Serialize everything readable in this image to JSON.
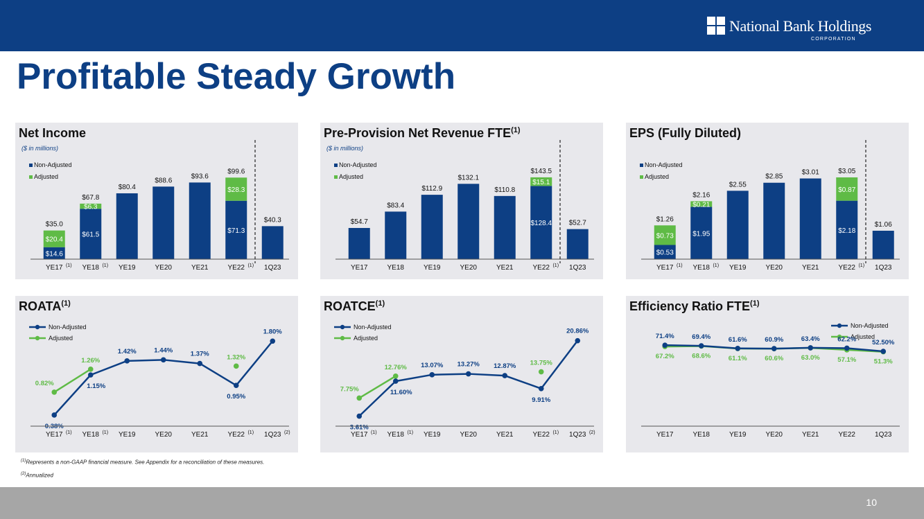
{
  "brand": {
    "name": "National Bank Holdings",
    "sub": "CORPORATION"
  },
  "page": {
    "title": "Profitable Steady Growth",
    "number": "10"
  },
  "colors": {
    "navy": "#0d3f84",
    "green": "#5fbb46",
    "panel_bg": "#e8e8ec",
    "grey_bar": "#a6a6a6"
  },
  "footnotes": {
    "note1_marker": "(1)",
    "note1_text": "Represents a non-GAAP financial measure.  See Appendix for a reconciliation of these measures.",
    "note2_marker": "(2)",
    "note2_text": "Annualized"
  },
  "chart_data": [
    {
      "id": "net-income",
      "type": "bar",
      "title": "Net Income",
      "title_sup": "",
      "subtitle": "($ in millions)",
      "legend": [
        "Non-Adjusted",
        "Adjusted"
      ],
      "categories": [
        "YE17",
        "YE18",
        "YE19",
        "YE20",
        "YE21",
        "YE22",
        "1Q23"
      ],
      "category_notes": [
        "(1)",
        "(1)",
        "",
        "",
        "",
        "(1)",
        ""
      ],
      "series": [
        {
          "name": "Non-Adjusted",
          "values": [
            14.6,
            61.5,
            80.4,
            88.6,
            93.6,
            71.3,
            40.3
          ]
        },
        {
          "name": "Adjusted",
          "values": [
            20.4,
            6.3,
            null,
            null,
            null,
            28.3,
            null
          ]
        }
      ],
      "inner_labels": [
        [
          "$14.6",
          "$20.4"
        ],
        [
          "$61.5",
          "$6.3"
        ],
        [
          "",
          ""
        ],
        [
          "",
          ""
        ],
        [
          "",
          ""
        ],
        [
          "$71.3",
          "$28.3"
        ],
        [
          "",
          ""
        ]
      ],
      "total_labels": [
        "$35.0",
        "$67.8",
        "$80.4",
        "$88.6",
        "$93.6",
        "$99.6",
        "$40.3"
      ],
      "ylim": [
        0,
        110
      ],
      "divider_after_index": 5
    },
    {
      "id": "ppnr",
      "type": "bar",
      "title": "Pre-Provision Net Revenue FTE",
      "title_sup": "(1)",
      "subtitle": "($ in millions)",
      "legend": [
        "Non-Adjusted",
        "Adjusted"
      ],
      "categories": [
        "YE17",
        "YE18",
        "YE19",
        "YE20",
        "YE21",
        "YE22",
        "1Q23"
      ],
      "category_notes": [
        "",
        "",
        "",
        "",
        "",
        "(1)",
        ""
      ],
      "series": [
        {
          "name": "Non-Adjusted",
          "values": [
            54.7,
            83.4,
            112.9,
            132.1,
            110.8,
            128.4,
            52.7
          ]
        },
        {
          "name": "Adjusted",
          "values": [
            null,
            null,
            null,
            null,
            null,
            15.1,
            null
          ]
        }
      ],
      "inner_labels": [
        [
          "",
          ""
        ],
        [
          "",
          ""
        ],
        [
          "",
          ""
        ],
        [
          "",
          ""
        ],
        [
          "",
          ""
        ],
        [
          "$128.4",
          "$15.1"
        ],
        [
          "",
          ""
        ]
      ],
      "total_labels": [
        "$54.7",
        "$83.4",
        "$112.9",
        "$132.1",
        "$110.8",
        "$143.5",
        "$52.7"
      ],
      "ylim": [
        0,
        158
      ],
      "divider_after_index": 5
    },
    {
      "id": "eps",
      "type": "bar",
      "title": "EPS (Fully Diluted)",
      "title_sup": "",
      "subtitle": "",
      "legend": [
        "Non-Adjusted",
        "Adjusted"
      ],
      "categories": [
        "YE17",
        "YE18",
        "YE19",
        "YE20",
        "YE21",
        "YE22",
        "1Q23"
      ],
      "category_notes": [
        "(1)",
        "(1)",
        "",
        "",
        "",
        "(1)",
        ""
      ],
      "series": [
        {
          "name": "Non-Adjusted",
          "values": [
            0.53,
            1.95,
            2.55,
            2.85,
            3.01,
            2.18,
            1.06
          ]
        },
        {
          "name": "Adjusted",
          "values": [
            0.73,
            0.21,
            null,
            null,
            null,
            0.87,
            null
          ]
        }
      ],
      "inner_labels": [
        [
          "$0.53",
          "$0.73"
        ],
        [
          "$1.95",
          "$0.21"
        ],
        [
          "",
          ""
        ],
        [
          "",
          ""
        ],
        [
          "",
          ""
        ],
        [
          "$2.18",
          "$0.87"
        ],
        [
          "",
          ""
        ]
      ],
      "total_labels": [
        "$1.26",
        "$2.16",
        "$2.55",
        "$2.85",
        "$3.01",
        "$3.05",
        "$1.06"
      ],
      "ylim": [
        0,
        3.36
      ],
      "divider_after_index": 5
    },
    {
      "id": "roata",
      "type": "line",
      "title": "ROATA",
      "title_sup": "(1)",
      "legend": [
        "Non-Adjusted",
        "Adjusted"
      ],
      "categories": [
        "YE17",
        "YE18",
        "YE19",
        "YE20",
        "YE21",
        "YE22",
        "1Q23"
      ],
      "category_notes": [
        "(1)",
        "(1)",
        "",
        "",
        "",
        "(1)",
        "(2)"
      ],
      "series": [
        {
          "name": "Non-Adjusted",
          "values": [
            0.38,
            1.15,
            1.42,
            1.44,
            1.37,
            0.95,
            1.8
          ]
        },
        {
          "name": "Adjusted",
          "values": [
            0.82,
            1.26,
            null,
            null,
            null,
            1.32,
            null
          ]
        }
      ],
      "labels_nonadj": [
        "0.38%",
        "1.15%",
        "1.42%",
        "1.44%",
        "1.37%",
        "0.95%",
        "1.80%"
      ],
      "labels_adj": [
        "0.82%",
        "1.26%",
        "",
        "",
        "",
        "1.32%",
        ""
      ],
      "ylim": [
        0.3,
        1.87
      ]
    },
    {
      "id": "roatce",
      "type": "line",
      "title": "ROATCE",
      "title_sup": "(1)",
      "legend": [
        "Non-Adjusted",
        "Adjusted"
      ],
      "categories": [
        "YE17",
        "YE18",
        "YE19",
        "YE20",
        "YE21",
        "YE22",
        "1Q23"
      ],
      "category_notes": [
        "(1)",
        "(1)",
        "",
        "",
        "",
        "(1)",
        "(2)"
      ],
      "series": [
        {
          "name": "Non-Adjusted",
          "values": [
            3.61,
            11.6,
            13.07,
            13.27,
            12.87,
            9.91,
            20.86
          ]
        },
        {
          "name": "Adjusted",
          "values": [
            7.75,
            12.76,
            null,
            null,
            null,
            13.75,
            null
          ]
        }
      ],
      "labels_nonadj": [
        "3.61%",
        "11.60%",
        "13.07%",
        "13.27%",
        "12.87%",
        "9.91%",
        "20.86%"
      ],
      "labels_adj": [
        "7.75%",
        "12.76%",
        "",
        "",
        "",
        "13.75%",
        ""
      ],
      "ylim": [
        2.9,
        21.6
      ]
    },
    {
      "id": "efficiency",
      "type": "line",
      "title": "Efficiency Ratio FTE",
      "title_sup": "(1)",
      "legend": [
        "Non-Adjusted",
        "Adjusted"
      ],
      "categories": [
        "YE17",
        "YE18",
        "YE19",
        "YE20",
        "YE21",
        "YE22",
        "1Q23"
      ],
      "category_notes": [
        "",
        "",
        "",
        "",
        "",
        "",
        ""
      ],
      "series": [
        {
          "name": "Non-Adjusted",
          "values": [
            71.4,
            69.4,
            61.6,
            60.9,
            63.4,
            62.2,
            52.5
          ]
        },
        {
          "name": "Adjusted",
          "values": [
            67.2,
            68.6,
            61.1,
            60.6,
            63.0,
            57.1,
            51.3
          ]
        }
      ],
      "labels_nonadj": [
        "71.4%",
        "69.4%",
        "61.6%",
        "60.9%",
        "63.4%",
        "62.2%",
        "52.50%"
      ],
      "labels_adj": [
        "67.2%",
        "68.6%",
        "61.1%",
        "60.6%",
        "63.0%",
        "57.1%",
        "51.3%"
      ],
      "ylim": [
        -155,
        95
      ]
    }
  ]
}
